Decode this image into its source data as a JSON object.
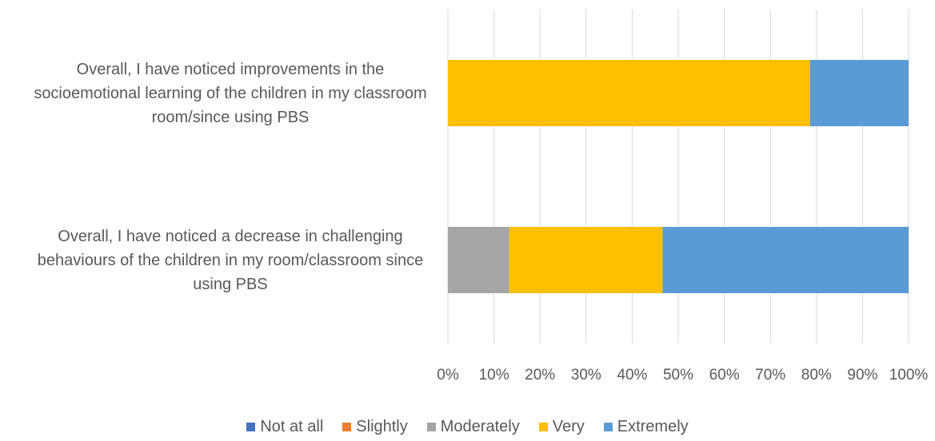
{
  "chart_data": {
    "type": "stacked_bar_horizontal",
    "categories": [
      "Overall, I have noticed improvements in the socioemotional learning of the children in my classroom room/since using PBS",
      "Overall, I have noticed a decrease in challenging behaviours of the children in my room/classroom since using PBS"
    ],
    "series": [
      {
        "name": "Not at all",
        "color": "#4472c4",
        "values": [
          0,
          0
        ]
      },
      {
        "name": "Slightly",
        "color": "#ed7d31",
        "values": [
          0,
          0
        ]
      },
      {
        "name": "Moderately",
        "color": "#a5a5a5",
        "values": [
          0,
          13.3
        ]
      },
      {
        "name": "Very",
        "color": "#ffc000",
        "values": [
          78.6,
          33.3
        ]
      },
      {
        "name": "Extremely",
        "color": "#5b9bd5",
        "values": [
          21.4,
          53.4
        ]
      }
    ],
    "xlim": [
      0,
      100
    ],
    "xticks": [
      {
        "value": 0,
        "label": "0%"
      },
      {
        "value": 10,
        "label": "10%"
      },
      {
        "value": 20,
        "label": "20%"
      },
      {
        "value": 30,
        "label": "30%"
      },
      {
        "value": 40,
        "label": "40%"
      },
      {
        "value": 50,
        "label": "50%"
      },
      {
        "value": 60,
        "label": "60%"
      },
      {
        "value": 70,
        "label": "70%"
      },
      {
        "value": 80,
        "label": "80%"
      },
      {
        "value": 90,
        "label": "90%"
      },
      {
        "value": 100,
        "label": "100%"
      }
    ],
    "grid": true,
    "legend": "bottom"
  }
}
